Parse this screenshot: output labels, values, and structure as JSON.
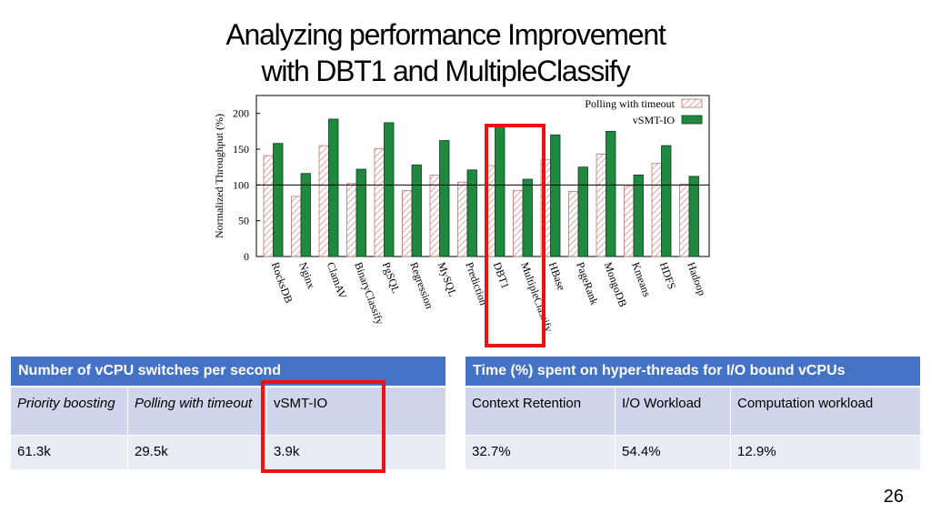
{
  "slide": {
    "title_line1": "Analyzing performance Improvement",
    "title_line2": "with DBT1 and MultipleClassify",
    "page_number": "26"
  },
  "colors": {
    "series_a": "#e8a7a7",
    "series_b": "#1f8a3f",
    "table_header": "#4472c4",
    "highlight": "#ee1111"
  },
  "chart_data": {
    "type": "bar",
    "ylabel": "Normalized Throughput (%)",
    "ylim": [
      0,
      225
    ],
    "yticks": [
      "0",
      "50",
      "100",
      "150",
      "200"
    ],
    "reference_line": 100,
    "legend_position": "top-right",
    "categories": [
      "RocksDB",
      "Nginx",
      "ClamAV",
      "BinaryClassify",
      "PgSQL",
      "Regression",
      "MySQL",
      "Prediction",
      "DBT1",
      "MultipleClassify",
      "HBase",
      "PageRank",
      "MongoDB",
      "Kmeans",
      "HDFS",
      "Hadoop"
    ],
    "series": [
      {
        "name": "Polling with timeout",
        "values": [
          141,
          84,
          155,
          102,
          151,
          92,
          114,
          104,
          127,
          92,
          135,
          91,
          143,
          98,
          130,
          101
        ]
      },
      {
        "name": "vSMT-IO",
        "values": [
          158,
          116,
          192,
          122,
          187,
          128,
          162,
          121,
          184,
          108,
          170,
          125,
          175,
          114,
          155,
          112
        ]
      }
    ],
    "highlighted_categories": [
      "DBT1",
      "MultipleClassify"
    ]
  },
  "table1": {
    "header": "Number of vCPU switches per second",
    "columns": [
      "Priority boosting",
      "Polling with timeout",
      "vSMT-IO"
    ],
    "values": [
      "61.3k",
      "29.5k",
      "3.9k"
    ]
  },
  "table2": {
    "header": "Time (%) spent on hyper-threads for I/O bound vCPUs",
    "columns": [
      "Context Retention",
      "I/O Workload",
      "Computation workload"
    ],
    "values": [
      "32.7%",
      "54.4%",
      "12.9%"
    ]
  }
}
